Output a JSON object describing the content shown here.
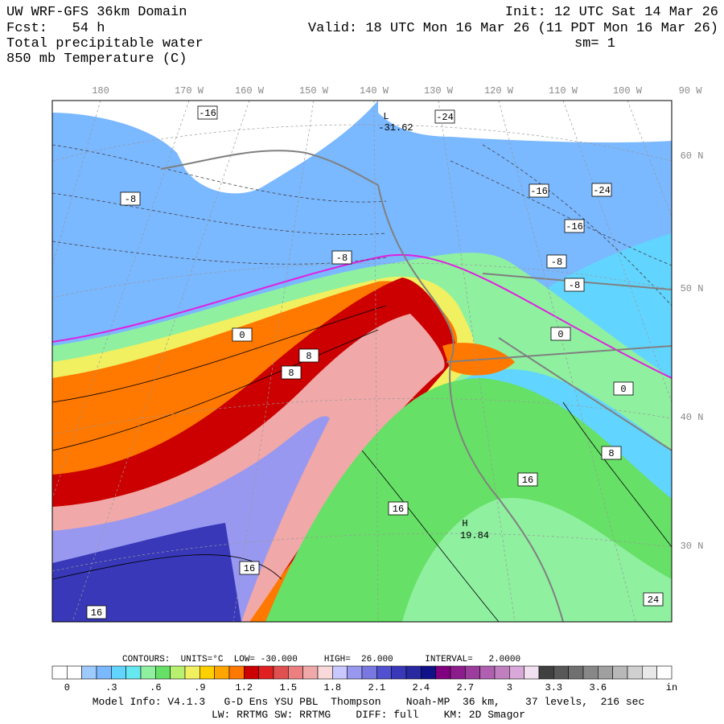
{
  "header": {
    "title": "UW WRF-GFS 36km Domain",
    "fcst": "Fcst:   54 h",
    "field1": "Total precipitable water",
    "field2": "850 mb Temperature (C)",
    "init": "Init: 12 UTC Sat 14 Mar 26",
    "valid": "Valid: 18 UTC Mon 16 Mar 26 (11 PDT Mon 16 Mar 26)",
    "sm": "sm= 1"
  },
  "map": {
    "lon_labels": [
      "180",
      "170 W",
      "160 W",
      "150 W",
      "140 W",
      "130 W",
      "120 W",
      "110 W",
      "100 W",
      "90 W"
    ],
    "lat_labels": [
      "60 N",
      "50 N",
      "40 N",
      "30 N"
    ],
    "contour_labels": [
      "-16",
      "L",
      "-31.62",
      "-24",
      "-8",
      "-16",
      "-24",
      "-16",
      "-8",
      "-8",
      "-8",
      "0",
      "0",
      "0",
      "8",
      "8",
      "8",
      "16",
      "16",
      "H",
      "19.84",
      "16",
      "24",
      "16"
    ]
  },
  "colorbar": {
    "contours": "CONTOURS:  UNITS=°C  LOW= -30.000     HIGH=  26.000      INTERVAL=   2.0000",
    "colors": [
      "#ffffff",
      "#ffffff",
      "#9ecbff",
      "#7ab8ff",
      "#61d5ff",
      "#66e8f0",
      "#8ff0a0",
      "#66e066",
      "#b8f070",
      "#f0f060",
      "#ffd000",
      "#ffa500",
      "#ff7800",
      "#cc0000",
      "#e02020",
      "#e05050",
      "#ec8080",
      "#f0a8a8",
      "#f8d8d8",
      "#c8c8ff",
      "#9898f0",
      "#7878e0",
      "#5050d0",
      "#3838b8",
      "#2828a0",
      "#101088",
      "#800080",
      "#8c1c8c",
      "#9c3c9c",
      "#b060b0",
      "#c080c0",
      "#d8a8d8",
      "#f0e0f0",
      "#404040",
      "#585858",
      "#707070",
      "#888888",
      "#a0a0a0",
      "#b8b8b8",
      "#d0d0d0",
      "#e8e8e8",
      "#ffffff"
    ],
    "labels": [
      "0",
      ".3",
      ".6",
      ".9",
      "1.2",
      "1.5",
      "1.8",
      "2.1",
      "2.4",
      "2.7",
      "3",
      "3.3",
      "3.6"
    ],
    "unit": "in"
  },
  "footer": {
    "line1": "Model Info: V4.1.3   G-D Ens YSU PBL  Thompson    Noah-MP  36 km,    37 levels,  216 sec",
    "line2": "LW: RRTMG SW: RRTMG    DIFF: full    KM: 2D Smagor"
  }
}
